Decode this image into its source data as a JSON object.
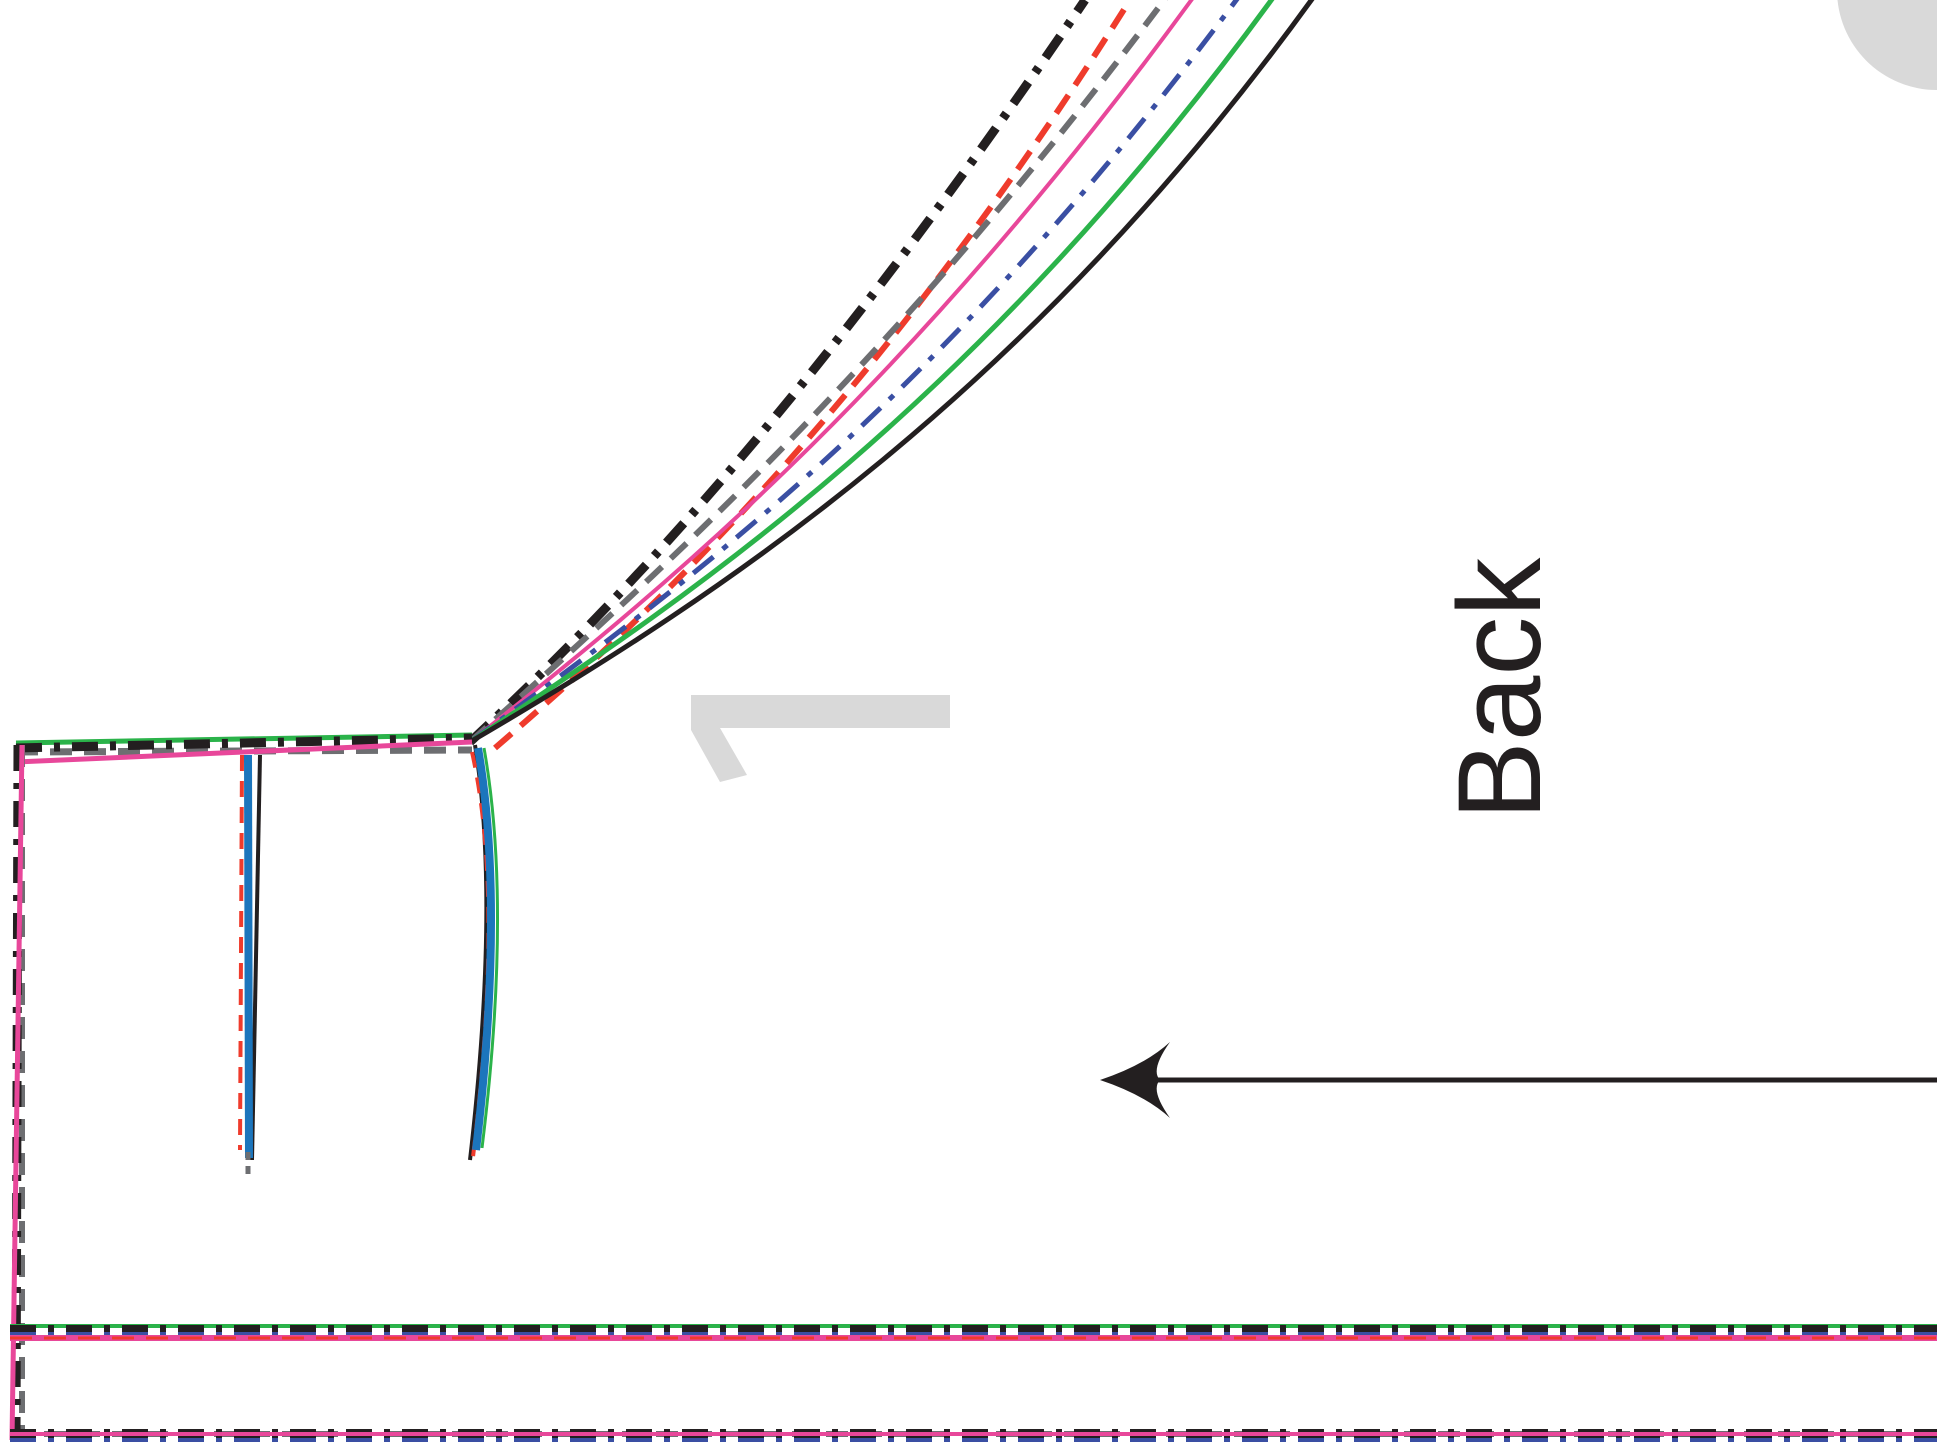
{
  "pattern": {
    "piece_label": "Back",
    "piece_number_mark": "1",
    "grainline": {
      "direction": "left"
    }
  },
  "colors": {
    "black": "#231f20",
    "green": "#2bb34a",
    "pink": "#e8479a",
    "blue_dashdot": "#3a4fa3",
    "red_dashed": "#ef3b2c",
    "gray_dashed": "#6d6e71",
    "blue_solid": "#1c75bc",
    "light_gray": "#d9d9d9"
  },
  "size_lines": [
    {
      "name": "black-solid",
      "color": "black",
      "style": "solid"
    },
    {
      "name": "green-solid",
      "color": "green",
      "style": "solid"
    },
    {
      "name": "pink-solid",
      "color": "pink",
      "style": "solid"
    },
    {
      "name": "blue-dashdot",
      "color": "blue_dashdot",
      "style": "dashdot"
    },
    {
      "name": "red-dashed",
      "color": "red_dashed",
      "style": "dashed"
    },
    {
      "name": "gray-dashed",
      "color": "gray_dashed",
      "style": "dashed"
    },
    {
      "name": "black-dashdot",
      "color": "black",
      "style": "dashdot"
    }
  ]
}
